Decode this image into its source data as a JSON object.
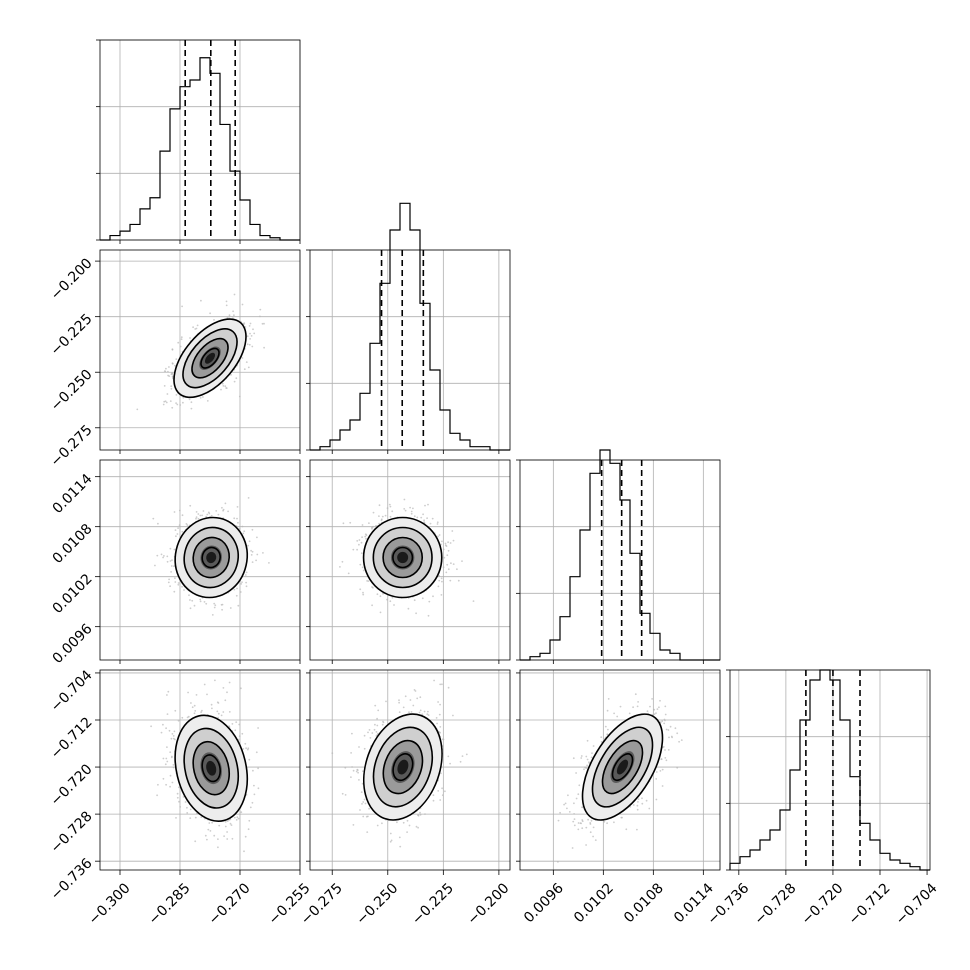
{
  "chart_data": {
    "type": "corner",
    "parameters": [
      {
        "range": [
          -0.305,
          -0.255
        ],
        "ticks": [
          -0.3,
          -0.285,
          -0.27,
          -0.255
        ],
        "tick_labels": [
          "−0.300",
          "−0.285",
          "−0.270",
          "−0.255"
        ],
        "quantiles": [
          -0.2837,
          -0.2773,
          -0.2712
        ],
        "histogram": {
          "edges_start": -0.305,
          "bin_width": 0.0025,
          "counts": [
            0,
            2,
            4,
            7,
            14,
            19,
            40,
            59,
            69,
            72,
            82,
            75,
            52,
            31,
            18,
            7,
            2,
            1,
            0,
            0
          ],
          "yticks": [
            0,
            30,
            60,
            90
          ]
        }
      },
      {
        "range": [
          -0.285,
          -0.195
        ],
        "ticks": [
          -0.275,
          -0.25,
          -0.225,
          -0.2
        ],
        "tick_labels": [
          "−0.275",
          "−0.250",
          "−0.225",
          "−0.200"
        ],
        "quantiles": [
          -0.2528,
          -0.2435,
          -0.234
        ],
        "histogram": {
          "edges_start": -0.285,
          "bin_width": 0.0045,
          "counts": [
            0,
            1,
            3,
            6,
            9,
            17,
            32,
            50,
            66,
            74,
            66,
            44,
            24,
            12,
            5,
            3,
            1,
            1,
            0,
            0
          ],
          "yticks": [
            0,
            20,
            40,
            60
          ]
        }
      },
      {
        "range": [
          0.0092,
          0.0116
        ],
        "ticks": [
          0.0096,
          0.0102,
          0.0108,
          0.0114
        ],
        "tick_labels": [
          "0.0096",
          "0.0102",
          "0.0108",
          "0.0114"
        ],
        "quantiles": [
          0.01018,
          0.01042,
          0.01066
        ],
        "histogram": {
          "edges_start": 0.0092,
          "bin_width": 0.00012,
          "counts": [
            0,
            1,
            2,
            6,
            13,
            25,
            39,
            56,
            63,
            59,
            48,
            32,
            14,
            8,
            3,
            2,
            0,
            0,
            0,
            0
          ],
          "yticks": [
            0,
            20,
            40,
            60
          ]
        }
      },
      {
        "range": [
          -0.7375,
          -0.7035
        ],
        "ticks": [
          -0.736,
          -0.728,
          -0.72,
          -0.712,
          -0.704
        ],
        "tick_labels": [
          "−0.736",
          "−0.728",
          "−0.720",
          "−0.712",
          "−0.704"
        ],
        "quantiles": [
          -0.7246,
          -0.72,
          -0.7154
        ],
        "histogram": {
          "edges_start": -0.7375,
          "bin_width": 0.0017,
          "counts": [
            2,
            4,
            6,
            9,
            12,
            18,
            30,
            45,
            57,
            60,
            57,
            45,
            28,
            14,
            9,
            5,
            3,
            2,
            1,
            0
          ],
          "yticks": [
            0,
            20,
            40,
            60
          ]
        }
      }
    ],
    "pairs": [
      {
        "x": 0,
        "y": 1,
        "center": [
          -0.2775,
          -0.2437
        ],
        "sigma": [
          0.0045,
          0.0088
        ],
        "corr": 0.55
      },
      {
        "x": 0,
        "y": 2,
        "center": [
          -0.2772,
          0.01043
        ],
        "sigma": [
          0.0045,
          0.00024
        ],
        "corr": 0.05
      },
      {
        "x": 1,
        "y": 2,
        "center": [
          -0.2433,
          0.01043
        ],
        "sigma": [
          0.0088,
          0.00024
        ],
        "corr": 0.0
      },
      {
        "x": 0,
        "y": 3,
        "center": [
          -0.2772,
          -0.7202
        ],
        "sigma": [
          0.0045,
          0.0045
        ],
        "corr": -0.2
      },
      {
        "x": 1,
        "y": 3,
        "center": [
          -0.2432,
          -0.72
        ],
        "sigma": [
          0.0088,
          0.0045
        ],
        "corr": 0.25
      },
      {
        "x": 2,
        "y": 3,
        "center": [
          0.01043,
          -0.72
        ],
        "sigma": [
          0.00024,
          0.0045
        ],
        "corr": 0.55
      }
    ],
    "contour_levels_sigma": [
      0.5,
      1.0,
      1.5,
      2.0
    ],
    "grid": true,
    "labels": {
      "title": "",
      "xlabel": "",
      "ylabel": ""
    }
  }
}
